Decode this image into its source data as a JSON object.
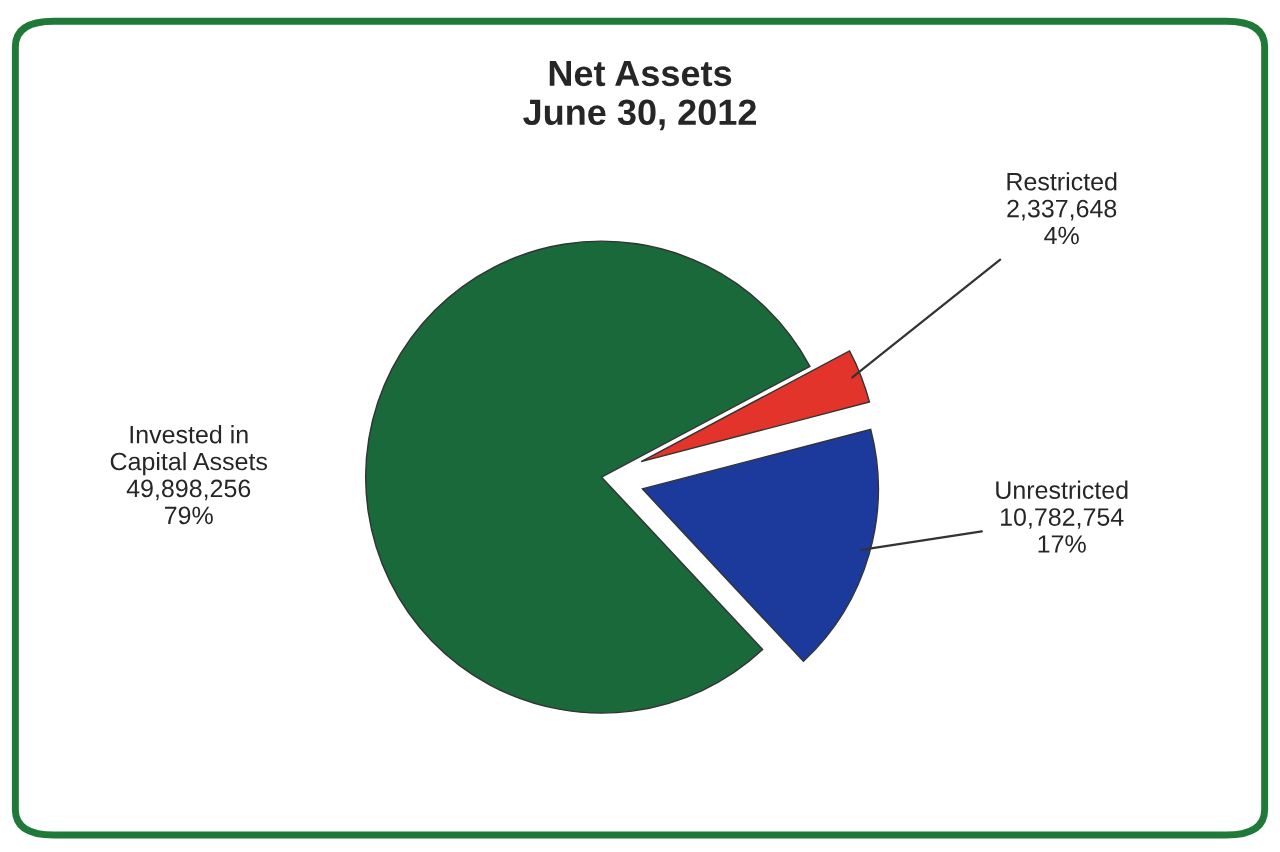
{
  "chart_data": {
    "type": "pie",
    "title": "Net Assets\nJune 30, 2012",
    "categories": [
      "Restricted",
      "Unrestricted",
      "Invested in\nCapital Assets"
    ],
    "values": [
      2337648,
      10782754,
      49898256
    ],
    "colors": [
      "#e3342b",
      "#1c3a9c",
      "#19693a"
    ],
    "value_labels": [
      "2,337,648\n4%",
      "10,782,754\n17%",
      "49,898,256\n79%"
    ]
  }
}
